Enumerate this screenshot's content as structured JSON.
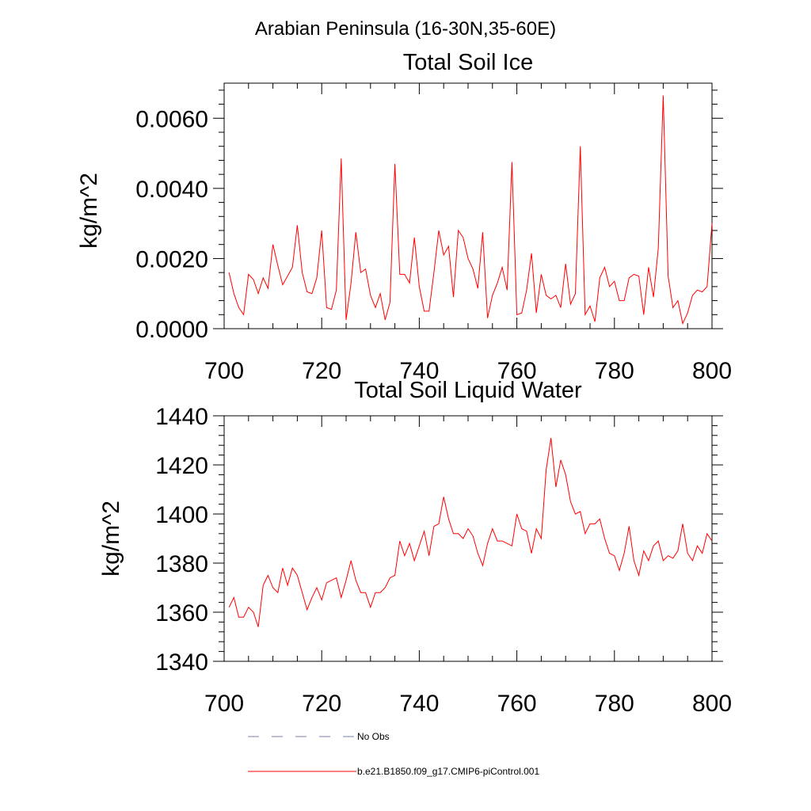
{
  "figure": {
    "main_title": "Arabian Peninsula (16-30N,35-60E)",
    "colors": {
      "series": "#ff0000",
      "obs": "#7a7fa8",
      "axes": "#000000"
    },
    "legend": {
      "placement": "bottom",
      "entries": [
        {
          "label": "No Obs",
          "style": "dashed"
        },
        {
          "label": "b.e21.B1850.f09_g17.CMIP6-piControl.001",
          "style": "solid"
        }
      ]
    }
  },
  "chart_data": [
    {
      "type": "line",
      "title": "Total Soil Ice",
      "xlabel": "",
      "ylabel": "kg/m^2",
      "xlim": [
        700,
        800
      ],
      "ylim": [
        0,
        0.007
      ],
      "xticks": [
        700,
        720,
        740,
        760,
        780,
        800
      ],
      "xtick_labels": [
        "700",
        "720",
        "740",
        "760",
        "780",
        "800"
      ],
      "yticks": [
        0,
        0.002,
        0.004,
        0.006
      ],
      "ytick_labels": [
        "0.0000",
        "0.0020",
        "0.0040",
        "0.0060"
      ],
      "grid": false,
      "x_start": 701,
      "x_step": 1,
      "series": [
        {
          "values": [
            0.0016,
            0.001,
            0.0006,
            0.0004,
            0.00155,
            0.0014,
            0.001,
            0.00145,
            0.00115,
            0.0024,
            0.0018,
            0.00125,
            0.0015,
            0.00175,
            0.00295,
            0.0016,
            0.00105,
            0.001,
            0.00145,
            0.0028,
            0.0006,
            0.00055,
            0.0011,
            0.00485,
            0.00025,
            0.0013,
            0.00275,
            0.0016,
            0.0017,
            0.00095,
            0.0006,
            0.001,
            0.00025,
            0.00075,
            0.0047,
            0.00155,
            0.00155,
            0.0013,
            0.0026,
            0.0012,
            0.0005,
            0.0005,
            0.0016,
            0.0028,
            0.0021,
            0.00235,
            0.0009,
            0.0028,
            0.0026,
            0.002,
            0.0017,
            0.00115,
            0.00275,
            0.0003,
            0.00095,
            0.0013,
            0.00175,
            0.0011,
            0.00475,
            0.0004,
            0.00045,
            0.0011,
            0.00215,
            0.00045,
            0.00155,
            0.00095,
            0.00085,
            0.00095,
            0.0006,
            0.00185,
            0.0007,
            0.001,
            0.0052,
            0.0004,
            0.00065,
            0.0002,
            0.00145,
            0.00175,
            0.0012,
            0.00135,
            0.0008,
            0.0008,
            0.00145,
            0.00155,
            0.0015,
            0.0004,
            0.00175,
            0.0009,
            0.0023,
            0.00665,
            0.0015,
            0.0006,
            0.0008,
            0.00015,
            0.00045,
            0.00095,
            0.0011,
            0.00105,
            0.0012,
            0.003
          ]
        }
      ]
    },
    {
      "type": "line",
      "title": "Total Soil Liquid Water",
      "xlabel": "",
      "ylabel": "kg/m^2",
      "xlim": [
        700,
        800
      ],
      "ylim": [
        1340,
        1440
      ],
      "xticks": [
        700,
        720,
        740,
        760,
        780,
        800
      ],
      "xtick_labels": [
        "700",
        "720",
        "740",
        "760",
        "780",
        "800"
      ],
      "yticks": [
        1340,
        1360,
        1380,
        1400,
        1420,
        1440
      ],
      "ytick_labels": [
        "1340",
        "1360",
        "1380",
        "1400",
        "1420",
        "1440"
      ],
      "grid": false,
      "x_start": 701,
      "x_step": 1,
      "series": [
        {
          "values": [
            1362,
            1366,
            1358,
            1358,
            1362,
            1360,
            1354,
            1371,
            1375,
            1370,
            1368,
            1378,
            1371,
            1378,
            1375,
            1368,
            1361,
            1366,
            1370,
            1365,
            1372,
            1373,
            1374,
            1366,
            1373,
            1381,
            1373,
            1368,
            1368,
            1362,
            1368,
            1368,
            1370,
            1374,
            1375,
            1389,
            1383,
            1388,
            1381,
            1387,
            1393,
            1383,
            1395,
            1396,
            1407,
            1398,
            1392,
            1392,
            1390,
            1394,
            1391,
            1384,
            1379,
            1388,
            1394,
            1389,
            1389,
            1388,
            1387,
            1400,
            1394,
            1393,
            1384,
            1394,
            1390,
            1418,
            1431,
            1411,
            1422,
            1416,
            1405,
            1400,
            1401,
            1392,
            1396,
            1396,
            1398,
            1390,
            1384,
            1383,
            1377,
            1384,
            1395,
            1381,
            1375,
            1385,
            1381,
            1387,
            1389,
            1381,
            1383,
            1382,
            1385,
            1396,
            1384,
            1381,
            1387,
            1384,
            1392,
            1389
          ]
        }
      ]
    }
  ]
}
